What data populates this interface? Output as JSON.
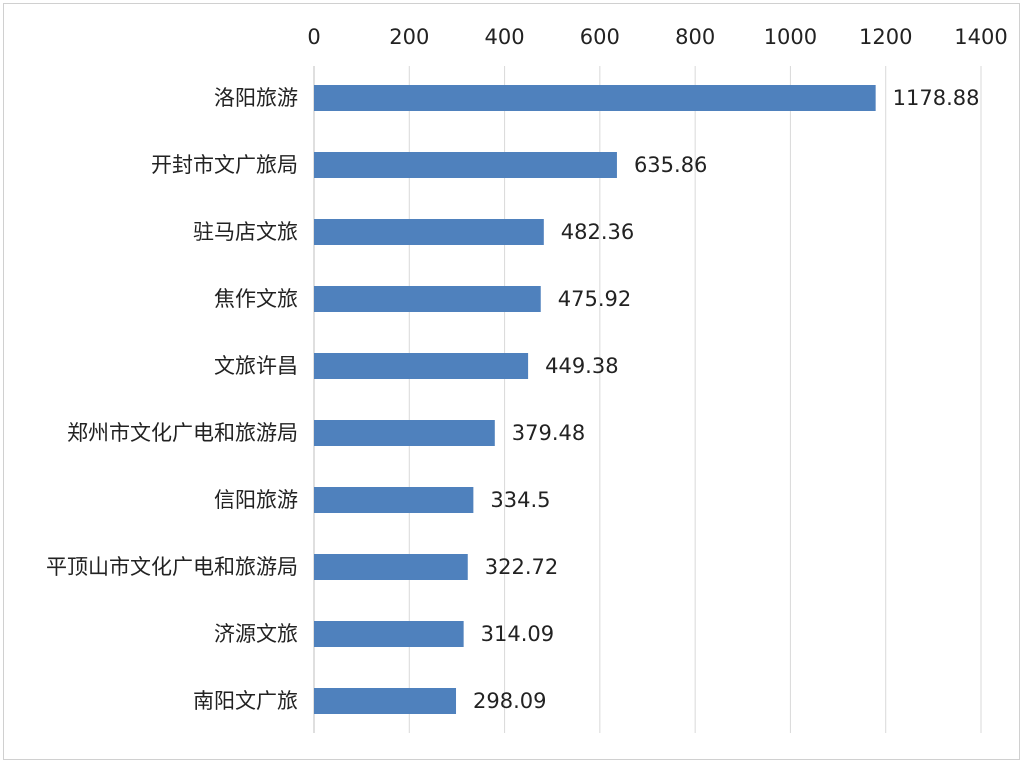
{
  "chart_data": {
    "type": "bar",
    "orientation": "horizontal",
    "title": "",
    "xlabel": "",
    "ylabel": "",
    "xlim": [
      0,
      1400
    ],
    "ticks": [
      0,
      200,
      400,
      600,
      800,
      1000,
      1200,
      1400
    ],
    "tick_labels": [
      "0",
      "200",
      "400",
      "600",
      "800",
      "1000",
      "1200",
      "1400"
    ],
    "x_axis_position": "top",
    "grid": "vertical",
    "legend": "none",
    "bar_color": "#4f81bd",
    "categories": [
      "洛阳旅游",
      "开封市文广旅局",
      "驻马店文旅",
      "焦作文旅",
      "文旅许昌",
      "郑州市文化广电和旅游局",
      "信阳旅游",
      "平顶山市文化广电和旅游局",
      "济源文旅",
      "南阳文广旅"
    ],
    "values": [
      1178.88,
      635.86,
      482.36,
      475.92,
      449.38,
      379.48,
      334.5,
      322.72,
      314.09,
      298.09
    ],
    "value_labels": [
      "1178.88",
      "635.86",
      "482.36",
      "475.92",
      "449.38",
      "379.48",
      "334.5",
      "322.72",
      "314.09",
      "298.09"
    ]
  }
}
